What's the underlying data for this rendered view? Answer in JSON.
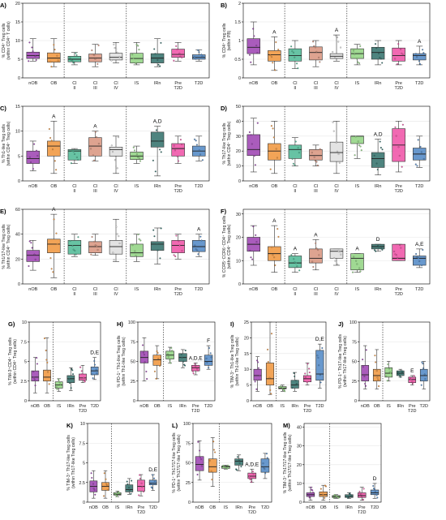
{
  "figure": {
    "group_colors": {
      "nOB": "#9b3fb0",
      "OB": "#f0943a",
      "Cl II": "#4cb994",
      "Cl III": "#d8937d",
      "Cl IV": "#dedede",
      "IS": "#8fd280",
      "IRn": "#2f6e69",
      "Pre T2D": "#ee4fa5",
      "T2D": "#4d86c4"
    },
    "tick_labels_9": [
      [
        "nOB"
      ],
      [
        "OB"
      ],
      [
        "Cl",
        "II"
      ],
      [
        "Cl",
        "III"
      ],
      [
        "Cl",
        "IV"
      ],
      [
        "IS"
      ],
      [
        "IRn"
      ],
      [
        "Pre",
        "T2D"
      ],
      [
        "T2D"
      ]
    ],
    "tick_labels_6": [
      [
        "nOB"
      ],
      [
        "OB"
      ],
      [
        "IS"
      ],
      [
        "IRn"
      ],
      [
        "Pre",
        "T2D"
      ],
      [
        "T2D"
      ]
    ]
  },
  "chart_data": [
    {
      "panel": "A)",
      "type": "box",
      "ylabel": [
        "% CD4⁺ Treg cells",
        "(within CD4⁺ T cells)"
      ],
      "yticks": [
        0,
        5,
        10,
        15,
        20
      ],
      "ylim": [
        0,
        20
      ],
      "groups": [
        "nOB",
        "OB",
        "Cl II",
        "Cl III",
        "Cl IV",
        "IS",
        "IRn",
        "Pre T2D",
        "T2D"
      ],
      "boxes": [
        [
          4.5,
          5.2,
          6,
          6.9,
          10.5
        ],
        [
          3,
          4.2,
          5.3,
          6.7,
          10.5
        ],
        [
          3.5,
          4.3,
          5,
          5.8,
          6.8
        ],
        [
          3,
          4.3,
          5.3,
          6.4,
          9
        ],
        [
          4,
          4.8,
          5.5,
          6.6,
          9.5
        ],
        [
          3.5,
          4,
          5.2,
          6.6,
          9.5
        ],
        [
          3,
          4,
          5.3,
          6.5,
          10.5
        ],
        [
          4.5,
          5.5,
          6.3,
          7.7,
          9.5
        ],
        [
          4.5,
          5,
          5.5,
          6.2,
          7.5
        ]
      ],
      "sig": [
        "",
        "",
        "",
        "",
        "",
        "",
        "",
        "",
        ""
      ]
    },
    {
      "panel": "B)",
      "type": "box",
      "ylabel": [
        "% CD4⁺ Treg cells",
        "(within PB)"
      ],
      "yticks": [
        0,
        0.5,
        1,
        1.5,
        2
      ],
      "ylim": [
        0,
        2
      ],
      "groups": [
        "nOB",
        "OB",
        "Cl II",
        "Cl III",
        "Cl IV",
        "IS",
        "IRn",
        "Pre T2D",
        "T2D"
      ],
      "boxes": [
        [
          0.35,
          0.65,
          0.82,
          1.05,
          1.5
        ],
        [
          0.2,
          0.45,
          0.62,
          0.73,
          1.1
        ],
        [
          0.25,
          0.45,
          0.6,
          0.78,
          1.0
        ],
        [
          0.3,
          0.48,
          0.68,
          0.83,
          1.0
        ],
        [
          0.45,
          0.52,
          0.58,
          0.65,
          1.15
        ],
        [
          0.35,
          0.52,
          0.65,
          0.78,
          0.9
        ],
        [
          0.35,
          0.5,
          0.68,
          0.82,
          1.0
        ],
        [
          0.35,
          0.45,
          0.6,
          0.8,
          1.0
        ],
        [
          0.35,
          0.48,
          0.6,
          0.65,
          0.85
        ]
      ],
      "sig": [
        "",
        "A",
        "",
        "",
        "A",
        "",
        "",
        "",
        "A"
      ]
    },
    {
      "panel": "C)",
      "type": "box",
      "ylabel": [
        "% Th1-like Treg cells",
        "(within CD4⁺ Treg cells)"
      ],
      "yticks": [
        0,
        5,
        10,
        15
      ],
      "ylim": [
        0,
        15
      ],
      "groups": [
        "nOB",
        "OB",
        "Cl II",
        "Cl III",
        "Cl IV",
        "IS",
        "IRn",
        "Pre T2D",
        "T2D"
      ],
      "boxes": [
        [
          2,
          3.5,
          4.5,
          6,
          8
        ],
        [
          1.5,
          5,
          7,
          8,
          12
        ],
        [
          3.5,
          4.2,
          6,
          6.3,
          6.5
        ],
        [
          4,
          5,
          7,
          8.7,
          10
        ],
        [
          1.5,
          5,
          6.3,
          6.8,
          9
        ],
        [
          3.5,
          4.3,
          5,
          5.8,
          7
        ],
        [
          1,
          6.8,
          8,
          9.8,
          11
        ],
        [
          3.5,
          5,
          6.5,
          7.5,
          9
        ],
        [
          4,
          5,
          6,
          7,
          9
        ]
      ],
      "sig": [
        "",
        "A",
        "",
        "A",
        "",
        "",
        "A,D",
        "",
        ""
      ]
    },
    {
      "panel": "D)",
      "type": "box",
      "ylabel": [
        "% Th17-like Treg cells",
        "(within CD4⁺ Treg cells)"
      ],
      "yticks": [
        0,
        10,
        20,
        30,
        40,
        50
      ],
      "ylim": [
        0,
        50
      ],
      "groups": [
        "nOB",
        "OB",
        "Cl II",
        "Cl III",
        "Cl IV",
        "IS",
        "IRn",
        "Pre T2D",
        "T2D"
      ],
      "boxes": [
        [
          6,
          17,
          21,
          31,
          42
        ],
        [
          5,
          14,
          20,
          25,
          40
        ],
        [
          10,
          15,
          21,
          24,
          29
        ],
        [
          10,
          14,
          17,
          21,
          24
        ],
        [
          5,
          13,
          19,
          26,
          40
        ],
        [
          15,
          25,
          30,
          30,
          30
        ],
        [
          4,
          9,
          15,
          19,
          28
        ],
        [
          6,
          13,
          24,
          35,
          40
        ],
        [
          9,
          14,
          18,
          22,
          30
        ]
      ],
      "sig": [
        "",
        "",
        "",
        "",
        "",
        "",
        "A,D",
        "",
        ""
      ]
    },
    {
      "panel": "E)",
      "type": "box",
      "ylabel": [
        "% Th1/17-like Treg cells",
        "(within CD4⁺ Treg cells)"
      ],
      "yticks": [
        0,
        20,
        40,
        60
      ],
      "ylim": [
        0,
        60
      ],
      "groups": [
        "nOB",
        "OB",
        "Cl II",
        "Cl III",
        "Cl IV",
        "IS",
        "IRn",
        "Pre T2D",
        "T2D"
      ],
      "boxes": [
        [
          11,
          18,
          23,
          27,
          35
        ],
        [
          5,
          25,
          32,
          36,
          56
        ],
        [
          22,
          24,
          31,
          35,
          40
        ],
        [
          23,
          25,
          30,
          34,
          40
        ],
        [
          18,
          24,
          30,
          35,
          52
        ],
        [
          18,
          22,
          25,
          32,
          40
        ],
        [
          16,
          27,
          32,
          34,
          45
        ],
        [
          20,
          25,
          31,
          35,
          40
        ],
        [
          22,
          26,
          30,
          35,
          40
        ]
      ],
      "sig": [
        "",
        "A",
        "",
        "",
        "",
        "",
        "",
        "",
        "A"
      ]
    },
    {
      "panel": "F)",
      "type": "box",
      "ylabel": [
        "% CCR5⁻CCR6⁻CD4⁺ Treg cells",
        "(within CD4⁺ Treg cells)"
      ],
      "yticks": [
        0,
        10,
        20,
        30
      ],
      "ylim": [
        0,
        32
      ],
      "groups": [
        "nOB",
        "OB",
        "Cl II",
        "Cl III",
        "Cl IV",
        "IS",
        "IRn",
        "Pre T2D",
        "T2D"
      ],
      "boxes": [
        [
          8,
          14,
          17,
          20,
          25
        ],
        [
          5,
          10,
          13,
          16,
          25
        ],
        [
          5,
          7,
          9,
          12,
          13
        ],
        [
          6,
          9,
          11,
          15,
          19
        ],
        [
          8,
          11,
          14,
          15,
          15
        ],
        [
          5,
          6,
          11,
          13,
          13
        ],
        [
          14,
          15,
          16,
          17,
          17
        ],
        [
          10,
          10,
          11,
          17,
          17
        ],
        [
          7,
          8,
          11,
          12,
          15
        ]
      ],
      "sig": [
        "",
        "A",
        "A",
        "A",
        "",
        "A",
        "D",
        "",
        "A,E"
      ]
    },
    {
      "panel": "G)",
      "type": "box",
      "ylabel": [
        "% TIM-3⁺CD4⁺ Treg cells",
        "(within CD4⁺ Treg cells)"
      ],
      "yticks": [
        0,
        2.5,
        5,
        7.5,
        10
      ],
      "ylim": [
        0,
        10
      ],
      "groups": [
        "nOB",
        "OB",
        "IS",
        "IRn",
        "Pre T2D",
        "T2D"
      ],
      "boxes": [
        [
          1,
          2.5,
          3,
          3.8,
          5.5
        ],
        [
          1,
          2.5,
          3,
          3.9,
          8
        ],
        [
          1.2,
          1.6,
          2,
          2.4,
          2.8
        ],
        [
          1.3,
          2.3,
          2.8,
          3.2,
          4.2
        ],
        [
          2.3,
          2.6,
          2.9,
          3.4,
          4.5
        ],
        [
          2.7,
          3.3,
          3.8,
          4.3,
          5.5
        ]
      ],
      "sig": [
        "",
        "",
        "",
        "",
        "",
        "D,E"
      ]
    },
    {
      "panel": "H)",
      "type": "box",
      "ylabel": [
        "% PD-1⁺ Th1-like Treg cells",
        "(within Th1-like Treg cells)"
      ],
      "yticks": [
        0,
        25,
        50,
        75,
        100
      ],
      "ylim": [
        0,
        100
      ],
      "groups": [
        "nOB",
        "OB",
        "IS",
        "IRn",
        "Pre T2D",
        "T2D"
      ],
      "boxes": [
        [
          25,
          48,
          55,
          63,
          80
        ],
        [
          28,
          45,
          52,
          58,
          70
        ],
        [
          48,
          53,
          58,
          63,
          68
        ],
        [
          42,
          50,
          55,
          60,
          65
        ],
        [
          33,
          38,
          42,
          45,
          48
        ],
        [
          40,
          45,
          50,
          58,
          70
        ]
      ],
      "sig": [
        "",
        "",
        "",
        "",
        "A,D,E",
        "F"
      ]
    },
    {
      "panel": "I)",
      "type": "box",
      "ylabel": [
        "% TIM-3⁺ Th1-like Treg cells",
        "(within Th1-like Treg cells)"
      ],
      "yticks": [
        0,
        5,
        10,
        15,
        20,
        25
      ],
      "ylim": [
        0,
        25
      ],
      "groups": [
        "nOB",
        "OB",
        "IS",
        "IRn",
        "Pre T2D",
        "T2D"
      ],
      "boxes": [
        [
          3,
          6.5,
          8,
          10,
          14
        ],
        [
          2,
          5,
          7,
          12,
          25
        ],
        [
          3,
          3.8,
          4,
          4.5,
          5
        ],
        [
          3,
          4,
          5,
          6.5,
          9
        ],
        [
          5,
          6,
          7,
          8,
          12
        ],
        [
          4,
          6.5,
          8.5,
          16,
          18
        ]
      ],
      "sig": [
        "",
        "",
        "",
        "",
        "",
        "D,E"
      ]
    },
    {
      "panel": "J)",
      "type": "box",
      "ylabel": [
        "% PD-1⁺ Th17-like Treg cells",
        "(within Th17-like Treg cells)"
      ],
      "yticks": [
        0,
        25,
        50,
        75,
        100
      ],
      "ylim": [
        0,
        100
      ],
      "groups": [
        "nOB",
        "OB",
        "IS",
        "IRn",
        "Pre T2D",
        "T2D"
      ],
      "boxes": [
        [
          15,
          25,
          33,
          45,
          70
        ],
        [
          15,
          25,
          32,
          40,
          65
        ],
        [
          25,
          30,
          35,
          42,
          50
        ],
        [
          30,
          32,
          35,
          38,
          40
        ],
        [
          20,
          23,
          27,
          30,
          32
        ],
        [
          15,
          25,
          32,
          40,
          50
        ]
      ],
      "sig": [
        "",
        "",
        "",
        "",
        "E",
        ""
      ]
    },
    {
      "panel": "K)",
      "type": "box",
      "ylabel": [
        "% TIM-3⁺ Th17-like Treg cells",
        "(within Th17-like Treg cells)"
      ],
      "yticks": [
        0,
        2.5,
        5,
        7.5,
        10
      ],
      "ylim": [
        0,
        10
      ],
      "groups": [
        "nOB",
        "OB",
        "IS",
        "IRn",
        "Pre T2D",
        "T2D"
      ],
      "boxes": [
        [
          0.5,
          1.3,
          2,
          2.7,
          4
        ],
        [
          0.5,
          1.5,
          2,
          2.5,
          4
        ],
        [
          0.7,
          0.9,
          1,
          1.2,
          1.4
        ],
        [
          1,
          1.3,
          1.6,
          2.2,
          3
        ],
        [
          0.8,
          1.4,
          2,
          2.8,
          3.5
        ],
        [
          1.5,
          2.2,
          2.4,
          2.8,
          3.5
        ]
      ],
      "sig": [
        "",
        "",
        "",
        "",
        "",
        "D,E"
      ]
    },
    {
      "panel": "L)",
      "type": "box",
      "ylabel": [
        "% PD-1⁺ Th17/17-like Treg cells",
        "(within Th17/17-like Treg cells)"
      ],
      "yticks": [
        0,
        25,
        50,
        75,
        100
      ],
      "ylim": [
        0,
        100
      ],
      "groups": [
        "nOB",
        "OB",
        "IS",
        "IRn",
        "Pre T2D",
        "T2D"
      ],
      "boxes": [
        [
          28,
          40,
          48,
          58,
          78
        ],
        [
          20,
          38,
          45,
          55,
          82
        ],
        [
          42,
          43,
          45,
          46,
          47
        ],
        [
          40,
          47,
          52,
          55,
          60
        ],
        [
          25,
          30,
          33,
          37,
          42
        ],
        [
          30,
          38,
          45,
          55,
          62
        ]
      ],
      "sig": [
        "",
        "",
        "",
        "",
        "A,D,E",
        ""
      ]
    },
    {
      "panel": "M)",
      "type": "box",
      "ylabel": [
        "% TIM-3⁺ Th17/17-like Treg cells",
        "(within Th17/17-like Treg cells)"
      ],
      "yticks": [
        0,
        10,
        20,
        30,
        40
      ],
      "ylim": [
        0,
        42
      ],
      "groups": [
        "nOB",
        "OB",
        "IS",
        "IRn",
        "Pre T2D",
        "T2D"
      ],
      "boxes": [
        [
          1,
          3,
          4,
          5,
          8
        ],
        [
          1,
          3,
          4,
          5.5,
          9
        ],
        [
          2,
          2.5,
          3,
          3.5,
          4
        ],
        [
          2,
          2.5,
          3,
          4,
          5
        ],
        [
          1,
          2.5,
          3.5,
          5,
          8
        ],
        [
          2,
          4,
          5,
          6.5,
          10
        ]
      ],
      "sig": [
        "",
        "",
        "",
        "",
        "",
        "D"
      ]
    }
  ]
}
